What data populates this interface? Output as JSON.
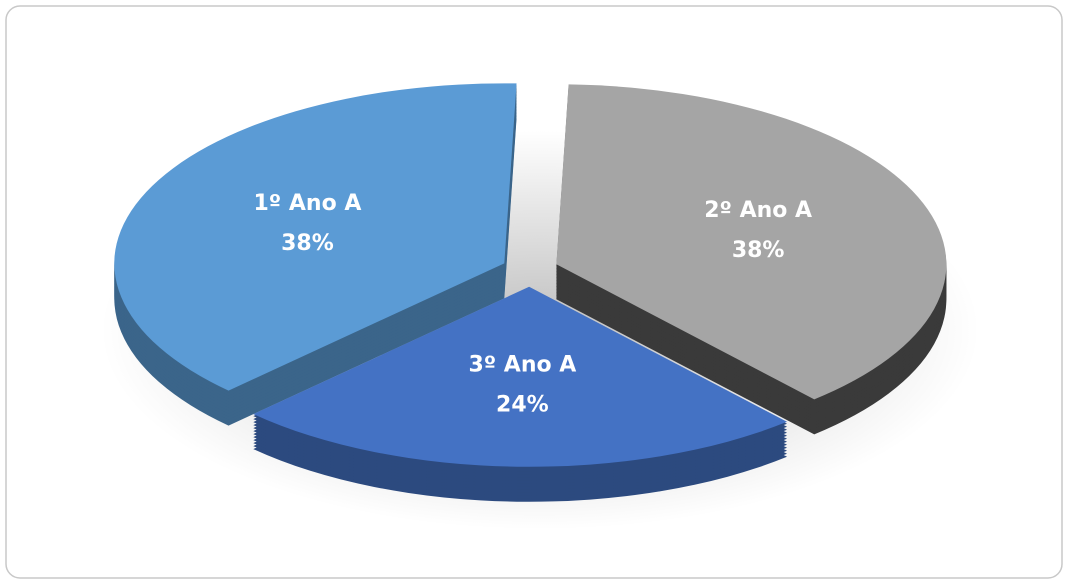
{
  "chart_data": {
    "type": "pie",
    "categories": [
      "1º Ano A",
      "2º Ano A",
      "3º Ano A"
    ],
    "values": [
      38,
      38,
      24
    ],
    "value_labels": [
      "38%",
      "38%",
      "24%"
    ],
    "colors": [
      "#5b9bd5",
      "#a5a5a5",
      "#4472c4"
    ]
  }
}
